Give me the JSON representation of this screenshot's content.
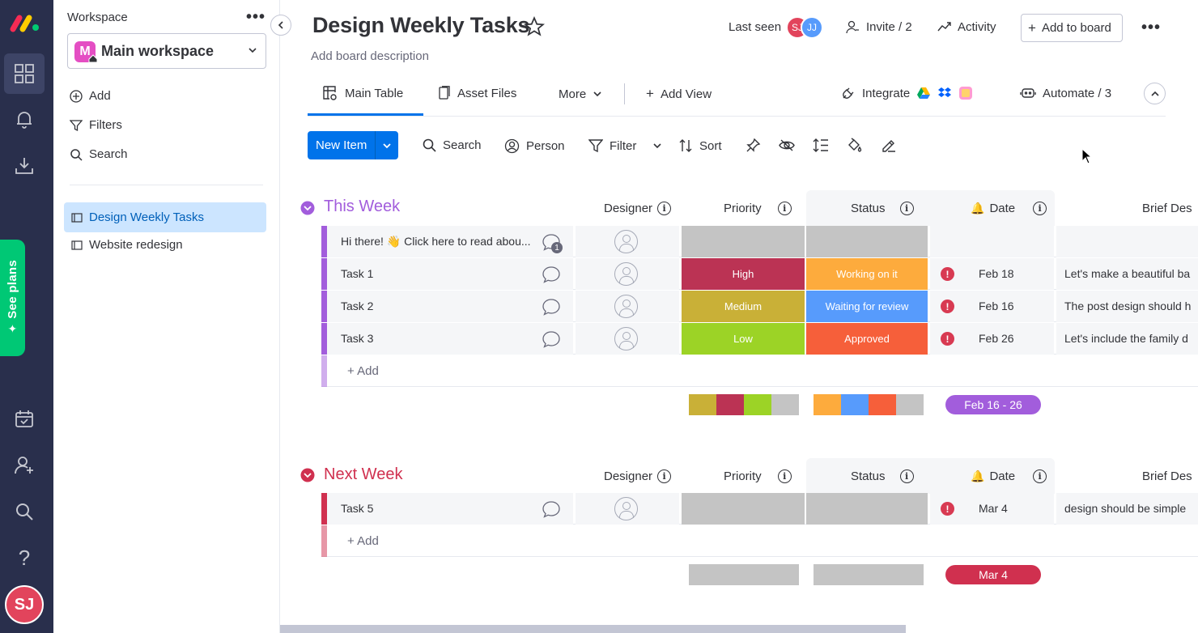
{
  "rail": {
    "see_plans": "See plans",
    "avatar_initials": "SJ"
  },
  "workspace": {
    "label": "Workspace",
    "name": "Main workspace",
    "badge": "M",
    "actions": [
      {
        "label": "Add",
        "icon": "plus-circle-icon"
      },
      {
        "label": "Filters",
        "icon": "filter-icon"
      },
      {
        "label": "Search",
        "icon": "search-icon"
      }
    ],
    "boards": [
      {
        "label": "Design Weekly Tasks",
        "active": true
      },
      {
        "label": "Website redesign",
        "active": false
      }
    ]
  },
  "header": {
    "title": "Design Weekly Tasks",
    "description": "Add board description",
    "last_seen": "Last seen",
    "avatars": [
      "SJ",
      "JJ"
    ],
    "invite": "Invite / 2",
    "activity": "Activity",
    "add_to_board": "Add to board"
  },
  "tabs": {
    "main_table": "Main Table",
    "asset_files": "Asset Files",
    "more": "More",
    "add_view": "Add View",
    "integrate": "Integrate",
    "automate": "Automate / 3"
  },
  "toolbar": {
    "new_item": "New Item",
    "search": "Search",
    "person": "Person",
    "filter": "Filter",
    "sort": "Sort"
  },
  "columns": {
    "designer": "Designer",
    "priority": "Priority",
    "status": "Status",
    "date": "Date",
    "brief": "Brief Des"
  },
  "groups": [
    {
      "title": "This Week",
      "color": "#a25ddc",
      "add_label": "+ Add",
      "rows": [
        {
          "name": "Hi there! 👋 Click here to read abou...",
          "priority": "",
          "priority_color": "#c4c4c4",
          "status": "",
          "status_color": "#c4c4c4",
          "date": "",
          "brief": "",
          "updates": "1"
        },
        {
          "name": "Task 1",
          "priority": "High",
          "priority_color": "#bb3354",
          "status": "Working on it",
          "status_color": "#fdab3d",
          "date": "Feb 18",
          "brief": "Let's make a beautiful ba"
        },
        {
          "name": "Task 2",
          "priority": "Medium",
          "priority_color": "#c9b037",
          "status": "Waiting for review",
          "status_color": "#579bfc",
          "date": "Feb 16",
          "brief": "The post design should h"
        },
        {
          "name": "Task 3",
          "priority": "Low",
          "priority_color": "#9cd326",
          "status": "Approved",
          "status_color": "#f65f3a",
          "date": "Feb 26",
          "brief": "Let's include the family d"
        }
      ],
      "date_range": "Feb 16 - 26"
    },
    {
      "title": "Next Week",
      "color": "#d0304f",
      "add_label": "+ Add",
      "rows": [
        {
          "name": "Task 5",
          "priority": "",
          "priority_color": "#c4c4c4",
          "status": "",
          "status_color": "#c4c4c4",
          "date": "Mar 4",
          "brief": "design should be simple"
        }
      ],
      "date_range": "Mar 4"
    }
  ]
}
